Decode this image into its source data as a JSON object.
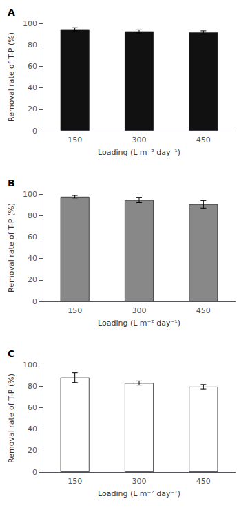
{
  "chart_data": [
    {
      "type": "bar",
      "title": "A",
      "categories": [
        "150",
        "300",
        "450"
      ],
      "values": [
        94.5,
        92.5,
        91.5
      ],
      "errors": [
        1.5,
        1.5,
        1.5
      ],
      "color": "#111111",
      "ylim": [
        0,
        100
      ],
      "yticks": [
        0,
        20,
        40,
        60,
        80,
        100
      ],
      "ylabel": "Removal rate of T-P (%)",
      "xlabel": "Loading (L m⁻² day⁻¹)",
      "grid": false
    },
    {
      "type": "bar",
      "title": "B",
      "categories": [
        "150",
        "300",
        "450"
      ],
      "values": [
        97.5,
        94.5,
        90.5
      ],
      "errors": [
        1.2,
        2.5,
        3.5
      ],
      "color": "#888888",
      "ylim": [
        0,
        100
      ],
      "yticks": [
        0,
        20,
        40,
        60,
        80,
        100
      ],
      "ylabel": "Removal rate of T-P (%)",
      "xlabel": "Loading (L m⁻² day⁻¹)",
      "grid": false
    },
    {
      "type": "bar",
      "title": "C",
      "categories": [
        "150",
        "300",
        "450"
      ],
      "values": [
        88.0,
        83.0,
        79.5
      ],
      "errors": [
        4.5,
        2.0,
        2.0
      ],
      "color": "#ffffff",
      "ylim": [
        0,
        100
      ],
      "yticks": [
        0,
        20,
        40,
        60,
        80,
        100
      ],
      "ylabel": "Removal rate of T-P (%)",
      "xlabel": "Loading (L m⁻² day⁻¹)",
      "grid": false
    }
  ]
}
